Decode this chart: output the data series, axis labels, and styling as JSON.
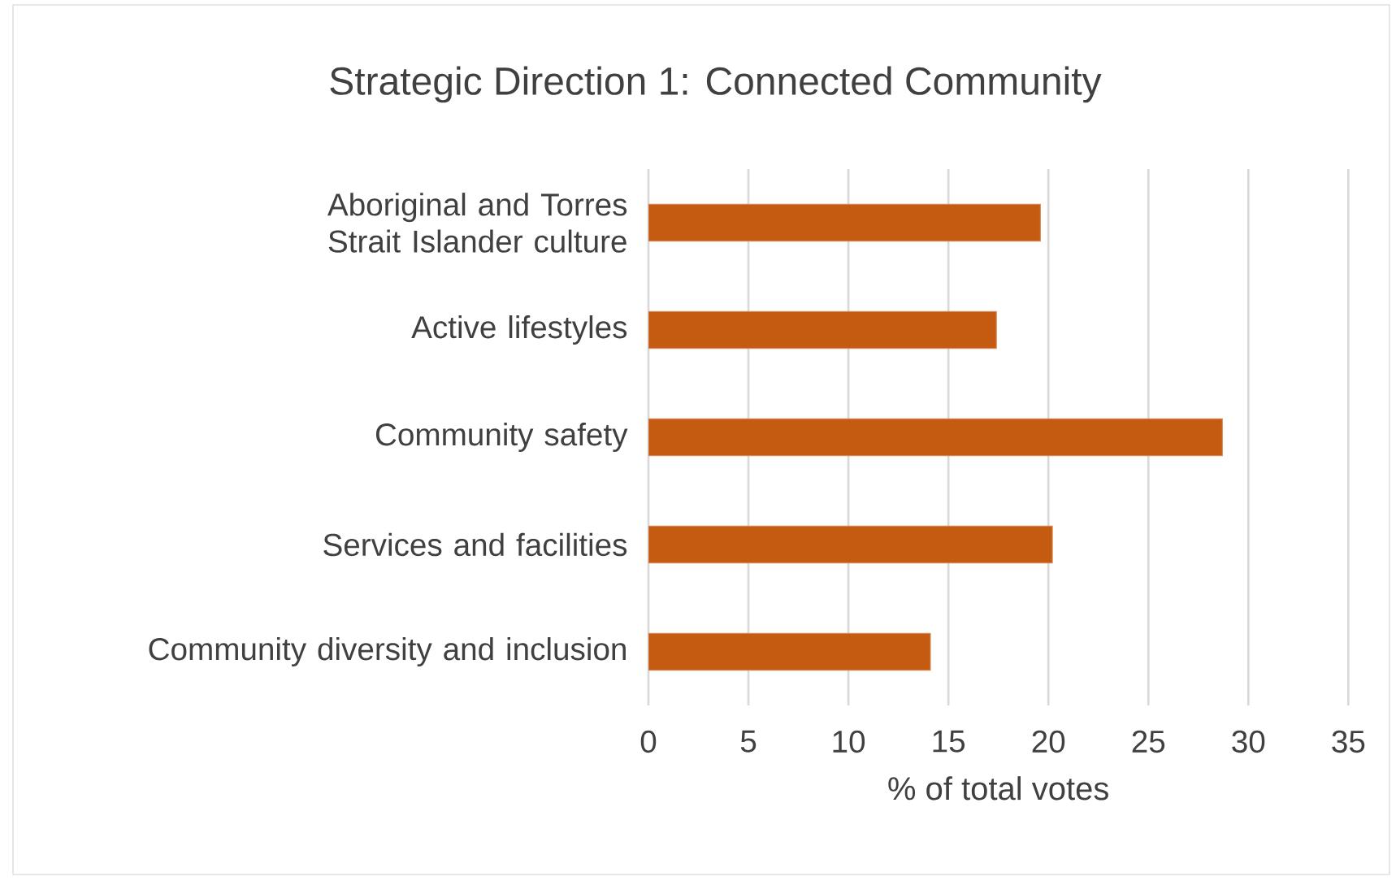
{
  "chart_data": {
    "type": "bar",
    "orientation": "horizontal",
    "title": "Strategic Direction 1: Connected Community",
    "xlabel": "% of total votes",
    "categories": [
      "Aboriginal and Torres Strait Islander culture",
      "Active lifestyles",
      "Community safety",
      "Services and facilities",
      "Community diversity and inclusion"
    ],
    "values": [
      19.6,
      17.4,
      28.7,
      20.2,
      14.1
    ],
    "color": "#c55a11",
    "xlim": [
      0,
      35
    ],
    "xticks": [
      0,
      5,
      10,
      15,
      20,
      25,
      30,
      35
    ],
    "grid": "x"
  }
}
